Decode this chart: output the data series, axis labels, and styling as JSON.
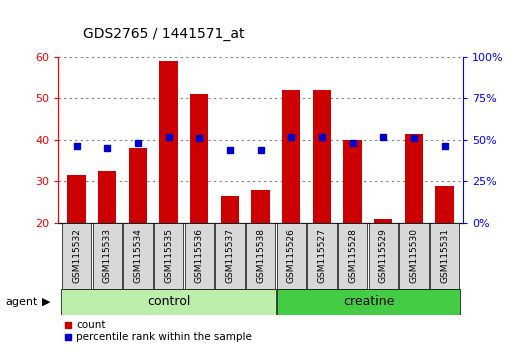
{
  "title": "GDS2765 / 1441571_at",
  "categories": [
    "GSM115532",
    "GSM115533",
    "GSM115534",
    "GSM115535",
    "GSM115536",
    "GSM115537",
    "GSM115538",
    "GSM115526",
    "GSM115527",
    "GSM115528",
    "GSM115529",
    "GSM115530",
    "GSM115531"
  ],
  "counts": [
    31.5,
    32.5,
    38.0,
    59.0,
    51.0,
    26.5,
    28.0,
    52.0,
    52.0,
    40.0,
    21.0,
    41.5,
    29.0
  ],
  "percentile_ranks": [
    46,
    45,
    48,
    52,
    51,
    44,
    44,
    52,
    52,
    48,
    52,
    51,
    46
  ],
  "count_ylim": [
    20,
    60
  ],
  "percentile_ylim": [
    0,
    100
  ],
  "count_yticks": [
    20,
    30,
    40,
    50,
    60
  ],
  "percentile_yticks": [
    0,
    25,
    50,
    75,
    100
  ],
  "bar_color": "#cc0000",
  "dot_color": "#0000cc",
  "control_color": "#bbeeaa",
  "creatine_color": "#44cc44",
  "bar_bottom": 20,
  "n_control": 7,
  "n_creatine": 6
}
